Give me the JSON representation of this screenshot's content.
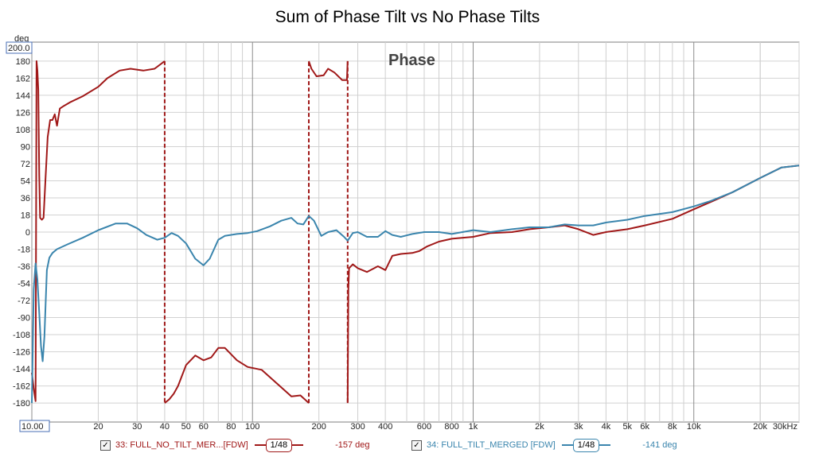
{
  "chart_data": {
    "type": "line",
    "title": "Sum of Phase Tilt vs No Phase Tilts",
    "annotation": "Phase",
    "y_unit": "deg",
    "y_top_label": "200.0",
    "x_left_label": "10.00",
    "xscale": "log",
    "xlim": [
      10,
      30000
    ],
    "ylim": [
      -200,
      200
    ],
    "grid": true,
    "y_ticks": [
      180,
      162,
      144,
      126,
      108,
      90,
      72,
      54,
      36,
      18,
      0,
      -18,
      -36,
      -54,
      -72,
      -90,
      -108,
      -126,
      -144,
      -162,
      -180
    ],
    "x_ticks": [
      {
        "v": 20,
        "label": "20"
      },
      {
        "v": 30,
        "label": "30"
      },
      {
        "v": 40,
        "label": "40"
      },
      {
        "v": 50,
        "label": "50"
      },
      {
        "v": 60,
        "label": "60"
      },
      {
        "v": 80,
        "label": "80"
      },
      {
        "v": 100,
        "label": "100"
      },
      {
        "v": 200,
        "label": "200"
      },
      {
        "v": 300,
        "label": "300"
      },
      {
        "v": 400,
        "label": "400"
      },
      {
        "v": 600,
        "label": "600"
      },
      {
        "v": 800,
        "label": "800"
      },
      {
        "v": 1000,
        "label": "1k"
      },
      {
        "v": 2000,
        "label": "2k"
      },
      {
        "v": 3000,
        "label": "3k"
      },
      {
        "v": 4000,
        "label": "4k"
      },
      {
        "v": 5000,
        "label": "5k"
      },
      {
        "v": 6000,
        "label": "6k"
      },
      {
        "v": 8000,
        "label": "8k"
      },
      {
        "v": 10000,
        "label": "10k"
      },
      {
        "v": 20000,
        "label": "20k"
      },
      {
        "v": 30000,
        "label": "30kHz"
      }
    ],
    "series": [
      {
        "name": "33: FULL_NO_TILT_MER...[FDW]",
        "smoothing": "1/48",
        "cursor_value": "-157 deg",
        "color": "#a01818",
        "segments": [
          [
            [
              10,
              -148
            ],
            [
              10.2,
              -165
            ],
            [
              10.4,
              -178
            ],
            [
              10.5,
              180
            ],
            [
              10.6,
              170
            ],
            [
              10.7,
              150
            ],
            [
              10.8,
              60
            ],
            [
              10.9,
              15
            ],
            [
              11.1,
              13
            ],
            [
              11.3,
              15
            ],
            [
              11.5,
              50
            ],
            [
              11.8,
              100
            ],
            [
              12.1,
              118
            ],
            [
              12.4,
              118
            ],
            [
              12.7,
              124
            ],
            [
              13,
              112
            ],
            [
              13.4,
              130
            ],
            [
              14,
              133
            ],
            [
              15,
              137
            ],
            [
              17,
              143
            ],
            [
              20,
              153
            ],
            [
              22,
              162
            ],
            [
              25,
              170
            ],
            [
              28,
              172
            ],
            [
              32,
              170
            ],
            [
              36,
              172
            ],
            [
              40,
              180
            ]
          ],
          [
            [
              40,
              -180
            ],
            [
              42,
              -176
            ],
            [
              44,
              -170
            ],
            [
              46,
              -162
            ],
            [
              50,
              -140
            ],
            [
              55,
              -130
            ],
            [
              60,
              -135
            ],
            [
              65,
              -132
            ],
            [
              70,
              -122
            ],
            [
              75,
              -122
            ],
            [
              85,
              -135
            ],
            [
              95,
              -142
            ],
            [
              110,
              -145
            ],
            [
              130,
              -160
            ],
            [
              150,
              -173
            ],
            [
              165,
              -172
            ],
            [
              180,
              -180
            ]
          ],
          [
            [
              180,
              180
            ],
            [
              185,
              172
            ],
            [
              195,
              164
            ],
            [
              210,
              165
            ],
            [
              220,
              172
            ],
            [
              235,
              168
            ],
            [
              255,
              160
            ],
            [
              268,
              160
            ],
            [
              270,
              180
            ]
          ],
          [
            [
              270,
              -180
            ],
            [
              272,
              -60
            ],
            [
              274,
              -38
            ],
            [
              285,
              -34
            ],
            [
              300,
              -38
            ],
            [
              330,
              -42
            ],
            [
              370,
              -36
            ],
            [
              400,
              -40
            ],
            [
              430,
              -25
            ],
            [
              470,
              -23
            ],
            [
              530,
              -22
            ],
            [
              570,
              -20
            ],
            [
              620,
              -15
            ],
            [
              700,
              -10
            ],
            [
              800,
              -7
            ],
            [
              1000,
              -5
            ],
            [
              1200,
              -1
            ],
            [
              1500,
              0
            ],
            [
              1800,
              3
            ],
            [
              2200,
              5
            ],
            [
              2600,
              7
            ],
            [
              3000,
              3
            ],
            [
              3500,
              -3
            ],
            [
              4000,
              0
            ],
            [
              5000,
              3
            ],
            [
              6000,
              7
            ],
            [
              8000,
              14
            ],
            [
              10000,
              24
            ],
            [
              12000,
              32
            ],
            [
              15000,
              42
            ],
            [
              20000,
              57
            ],
            [
              25000,
              68
            ],
            [
              30000,
              70
            ]
          ]
        ]
      },
      {
        "name": "34: FULL_TILT_MERGED [FDW]",
        "smoothing": "1/48",
        "cursor_value": "-141 deg",
        "color": "#3a85ad",
        "segments": [
          [
            [
              10,
              -180
            ],
            [
              10.1,
              -120
            ],
            [
              10.2,
              -60
            ],
            [
              10.4,
              -33
            ],
            [
              10.6,
              -50
            ],
            [
              10.8,
              -85
            ],
            [
              11,
              -120
            ],
            [
              11.2,
              -136
            ],
            [
              11.4,
              -110
            ],
            [
              11.7,
              -40
            ],
            [
              12,
              -27
            ],
            [
              12.4,
              -22
            ],
            [
              13,
              -18
            ],
            [
              14.5,
              -13
            ],
            [
              17,
              -6
            ],
            [
              20,
              2
            ],
            [
              24,
              9
            ],
            [
              27,
              9
            ],
            [
              30,
              4
            ],
            [
              33,
              -3
            ],
            [
              37,
              -8
            ],
            [
              40,
              -6
            ],
            [
              43,
              -1
            ],
            [
              46,
              -4
            ],
            [
              50,
              -12
            ],
            [
              55,
              -28
            ],
            [
              60,
              -35
            ],
            [
              64,
              -28
            ],
            [
              70,
              -8
            ],
            [
              75,
              -4
            ],
            [
              85,
              -2
            ],
            [
              95,
              -1
            ],
            [
              105,
              1
            ],
            [
              120,
              6
            ],
            [
              135,
              12
            ],
            [
              150,
              15
            ],
            [
              160,
              9
            ],
            [
              170,
              8
            ],
            [
              180,
              17
            ],
            [
              190,
              12
            ],
            [
              205,
              -4
            ],
            [
              220,
              0
            ],
            [
              240,
              2
            ],
            [
              260,
              -5
            ],
            [
              270,
              -9
            ],
            [
              285,
              -1
            ],
            [
              300,
              0
            ],
            [
              330,
              -5
            ],
            [
              370,
              -5
            ],
            [
              400,
              1
            ],
            [
              430,
              -3
            ],
            [
              470,
              -5
            ],
            [
              530,
              -2
            ],
            [
              600,
              0
            ],
            [
              700,
              0
            ],
            [
              800,
              -2
            ],
            [
              1000,
              2
            ],
            [
              1200,
              0
            ],
            [
              1500,
              3
            ],
            [
              1800,
              5
            ],
            [
              2200,
              5
            ],
            [
              2600,
              8
            ],
            [
              3000,
              7
            ],
            [
              3500,
              7
            ],
            [
              4000,
              10
            ],
            [
              5000,
              13
            ],
            [
              6000,
              17
            ],
            [
              8000,
              21
            ],
            [
              10000,
              27
            ],
            [
              12000,
              33
            ],
            [
              15000,
              42
            ],
            [
              20000,
              57
            ],
            [
              25000,
              68
            ],
            [
              30000,
              70
            ]
          ]
        ]
      }
    ]
  }
}
